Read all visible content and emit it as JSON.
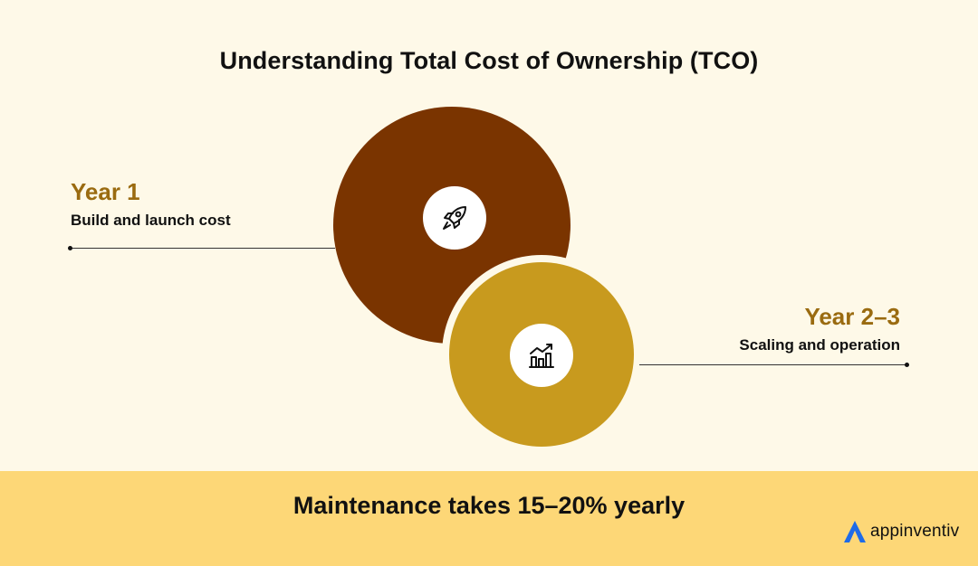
{
  "title": "Understanding Total Cost of Ownership (TCO)",
  "stages": [
    {
      "title": "Year 1",
      "subtitle": "Build and launch cost",
      "icon": "rocket-icon"
    },
    {
      "title": "Year 2–3",
      "subtitle": "Scaling and operation",
      "icon": "growth-chart-icon"
    }
  ],
  "footer": {
    "text": "Maintenance takes 15–20% yearly"
  },
  "logo": {
    "text": "appinventiv"
  },
  "colors": {
    "background": "#FEF9E8",
    "year1_circle": "#7A3400",
    "year2_circle": "#C89A1E",
    "year_title": "#9A6B10",
    "footer_band": "#FDD777",
    "logo_accent": "#1E6BE8"
  }
}
